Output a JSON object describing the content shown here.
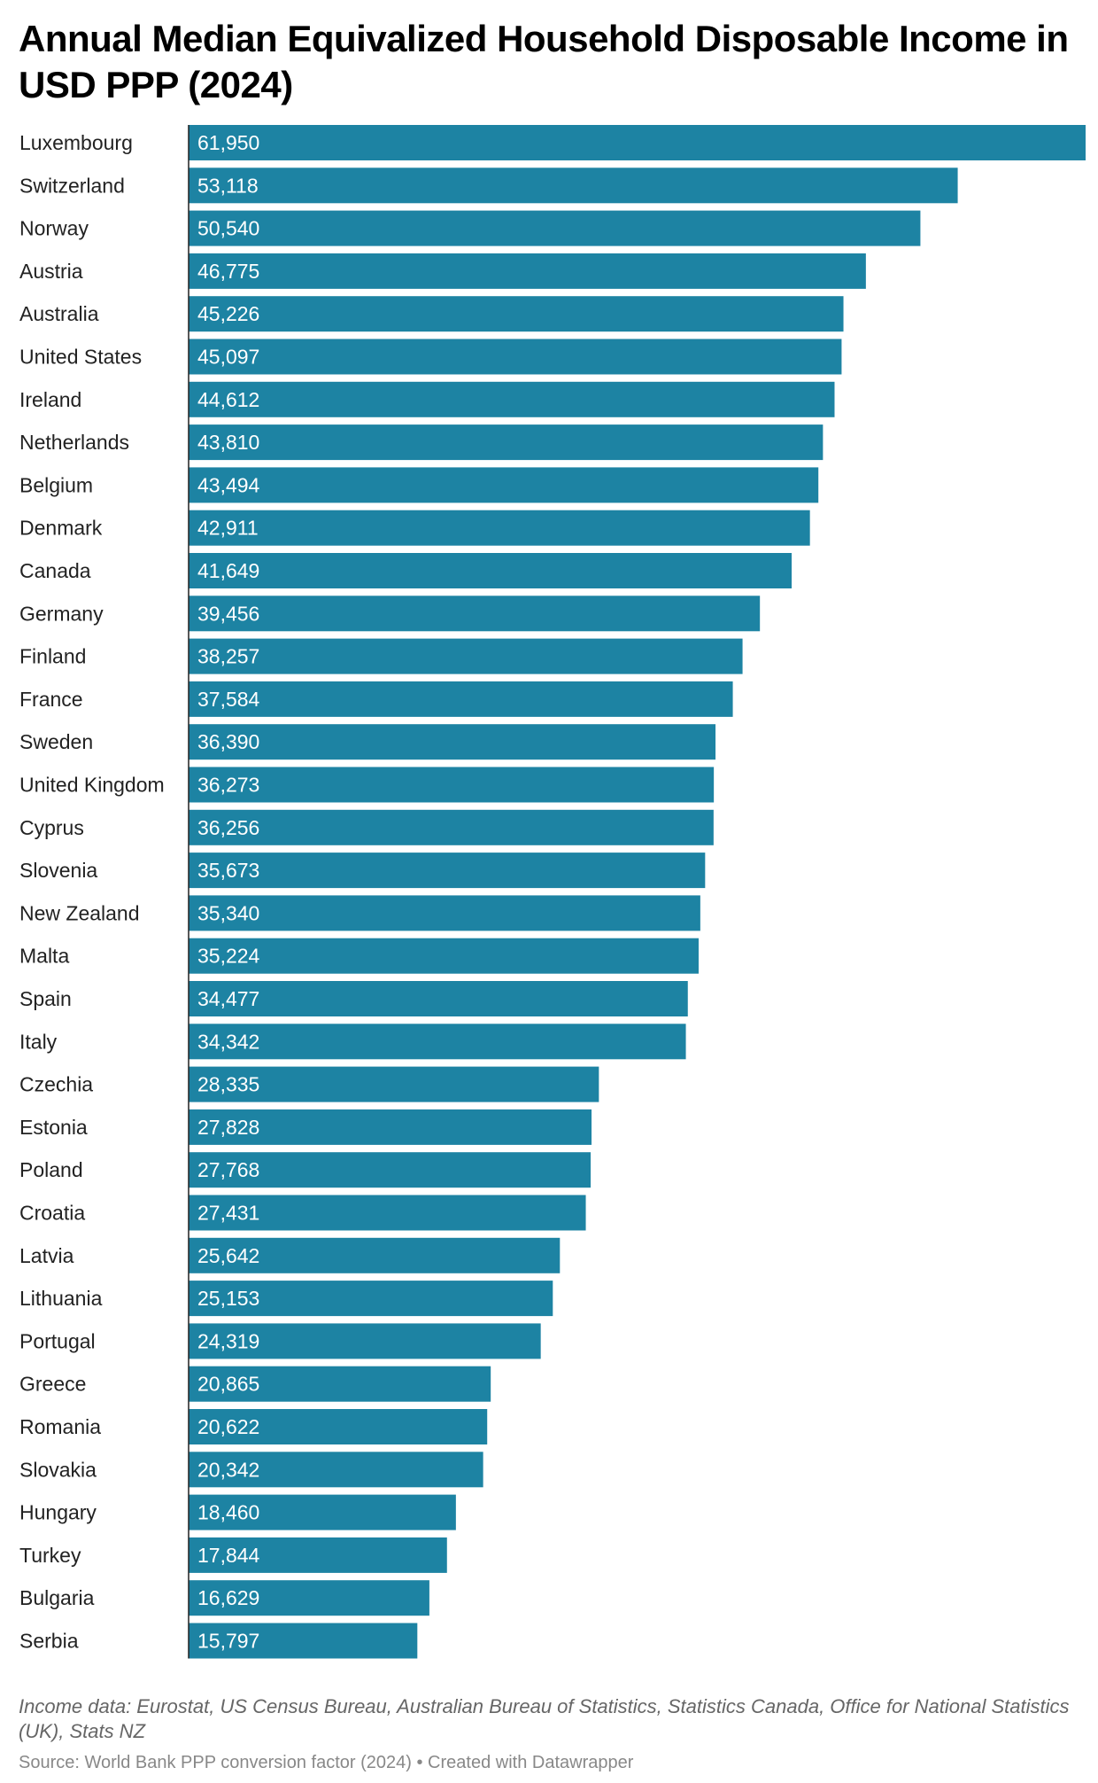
{
  "title": "Annual Median Equivalized Household Disposable Income in USD PPP (2024)",
  "notes": "Income data: Eurostat, US Census Bureau, Australian Bureau of Statistics, Statistics Canada, Office for National Statistics (UK), Stats NZ",
  "source": "Source: World Bank PPP conversion factor (2024) • Created with Datawrapper",
  "chart_data": {
    "type": "bar",
    "orientation": "horizontal",
    "title": "Annual Median Equivalized Household Disposable Income in USD PPP (2024)",
    "bar_color": "#1d83a3",
    "xlim": [
      0,
      61950
    ],
    "grid": false,
    "categories": [
      "Luxembourg",
      "Switzerland",
      "Norway",
      "Austria",
      "Australia",
      "United States",
      "Ireland",
      "Netherlands",
      "Belgium",
      "Denmark",
      "Canada",
      "Germany",
      "Finland",
      "France",
      "Sweden",
      "United Kingdom",
      "Cyprus",
      "Slovenia",
      "New Zealand",
      "Malta",
      "Spain",
      "Italy",
      "Czechia",
      "Estonia",
      "Poland",
      "Croatia",
      "Latvia",
      "Lithuania",
      "Portugal",
      "Greece",
      "Romania",
      "Slovakia",
      "Hungary",
      "Turkey",
      "Bulgaria",
      "Serbia"
    ],
    "values": [
      61950,
      53118,
      50540,
      46775,
      45226,
      45097,
      44612,
      43810,
      43494,
      42911,
      41649,
      39456,
      38257,
      37584,
      36390,
      36273,
      36256,
      35673,
      35340,
      35224,
      34477,
      34342,
      28335,
      27828,
      27768,
      27431,
      25642,
      25153,
      24319,
      20865,
      20622,
      20342,
      18460,
      17844,
      16629,
      15797
    ],
    "value_labels": [
      "61,950",
      "53,118",
      "50,540",
      "46,775",
      "45,226",
      "45,097",
      "44,612",
      "43,810",
      "43,494",
      "42,911",
      "41,649",
      "39,456",
      "38,257",
      "37,584",
      "36,390",
      "36,273",
      "36,256",
      "35,673",
      "35,340",
      "35,224",
      "34,477",
      "34,342",
      "28,335",
      "27,828",
      "27,768",
      "27,431",
      "25,642",
      "25,153",
      "24,319",
      "20,865",
      "20,622",
      "20,342",
      "18,460",
      "17,844",
      "16,629",
      "15,797"
    ]
  }
}
